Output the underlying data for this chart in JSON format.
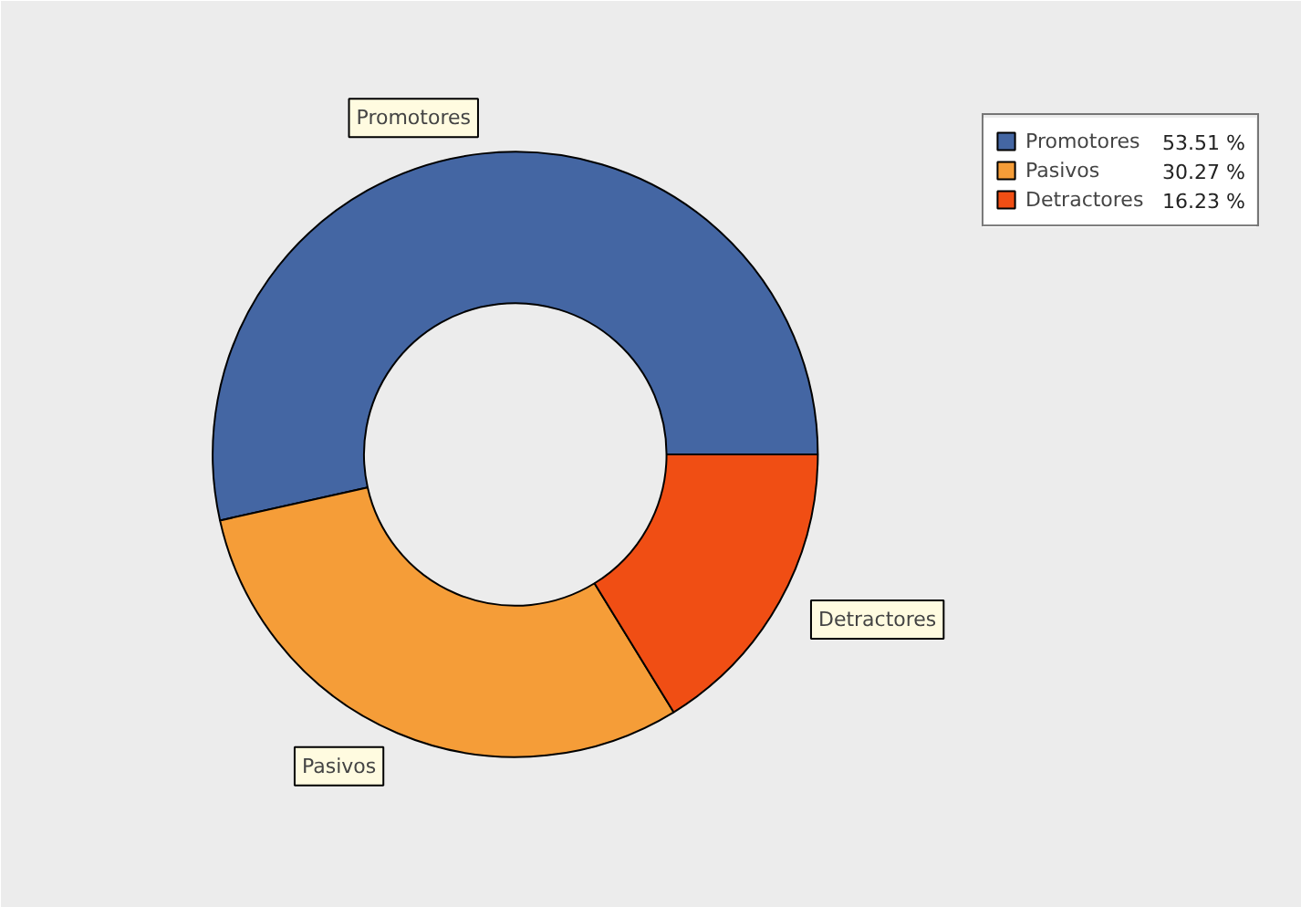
{
  "chart_data": {
    "type": "donut",
    "categories": [
      "Promotores",
      "Pasivos",
      "Detractores"
    ],
    "values": [
      53.51,
      30.27,
      16.23
    ],
    "colors": [
      "#4466a3",
      "#f59d38",
      "#f04e14"
    ],
    "value_labels": [
      "53.51 %",
      "30.27 %",
      "16.23 %"
    ],
    "legend": "top right"
  }
}
